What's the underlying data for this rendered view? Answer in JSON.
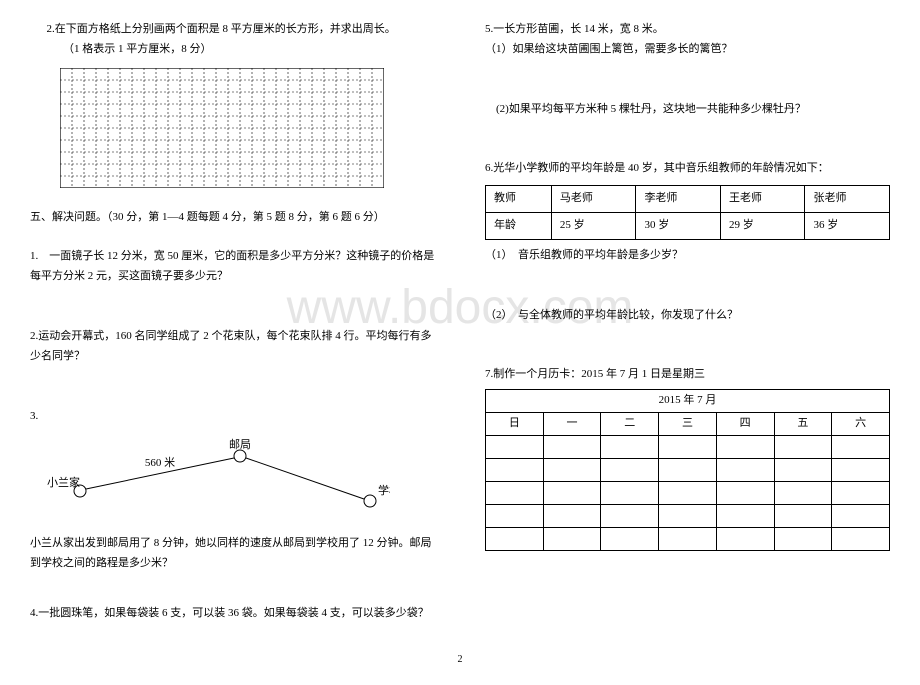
{
  "left": {
    "q2_header": "2.在下面方格纸上分别画两个面积是 8 平方厘米的长方形，并求出周长。",
    "q2_sub": "（1 格表示 1 平方厘米，8 分）",
    "grid": {
      "cols": 27,
      "rows": 10,
      "cell": 12,
      "stroke": "#000"
    },
    "section5": "五、解决问题。（30 分，第 1—4 题每题 4 分，第 5 题 8 分，第 6 题 6 分）",
    "q1": "1.　一面镜子长 12 分米，宽 50 厘米，它的面积是多少平方分米？这种镜子的价格是每平方分米 2 元，买这面镜子要多少元？",
    "q2b": "2.运动会开幕式，160 名同学组成了 2 个花束队，每个花束队排 4 行。平均每行有多少名同学？",
    "q3_num": "3.",
    "q3_dist": "560 米",
    "q3_xl": "小兰家",
    "q3_post": "邮局",
    "q3_school": "学校",
    "q3_text": "小兰从家出发到邮局用了 8 分钟，她以同样的速度从邮局到学校用了 12 分钟。邮局到学校之间的路程是多少米？",
    "q4": "4.一批圆珠笔，如果每袋装 6 支，可以装 36 袋。如果每袋装 4 支，可以装多少袋？"
  },
  "right": {
    "q5": "5.一长方形苗圃，长 14 米，宽 8 米。",
    "q5_1": "（1）如果给这块苗圃围上篱笆，需要多长的篱笆？",
    "q5_2": "(2)如果平均每平方米种 5 棵牡丹，这块地一共能种多少棵牡丹？",
    "q6": "6.光华小学教师的平均年龄是 40 岁，其中音乐组教师的年龄情况如下：",
    "teachers": {
      "headers": [
        "教师",
        "马老师",
        "李老师",
        "王老师",
        "张老师"
      ],
      "row": [
        "年龄",
        "25 岁",
        "30 岁",
        "29 岁",
        "36 岁"
      ]
    },
    "q6_1": "（1）　音乐组教师的平均年龄是多少岁？",
    "q6_2": "（2）　与全体教师的平均年龄比较，你发现了什么？",
    "q7": "7.制作一个月历卡：2015 年 7 月 1 日是星期三",
    "cal_title": "2015 年 7 月",
    "cal_days": [
      "日",
      "一",
      "二",
      "三",
      "四",
      "五",
      "六"
    ]
  },
  "watermark": "www.bdocx.com",
  "pagenum": "2"
}
